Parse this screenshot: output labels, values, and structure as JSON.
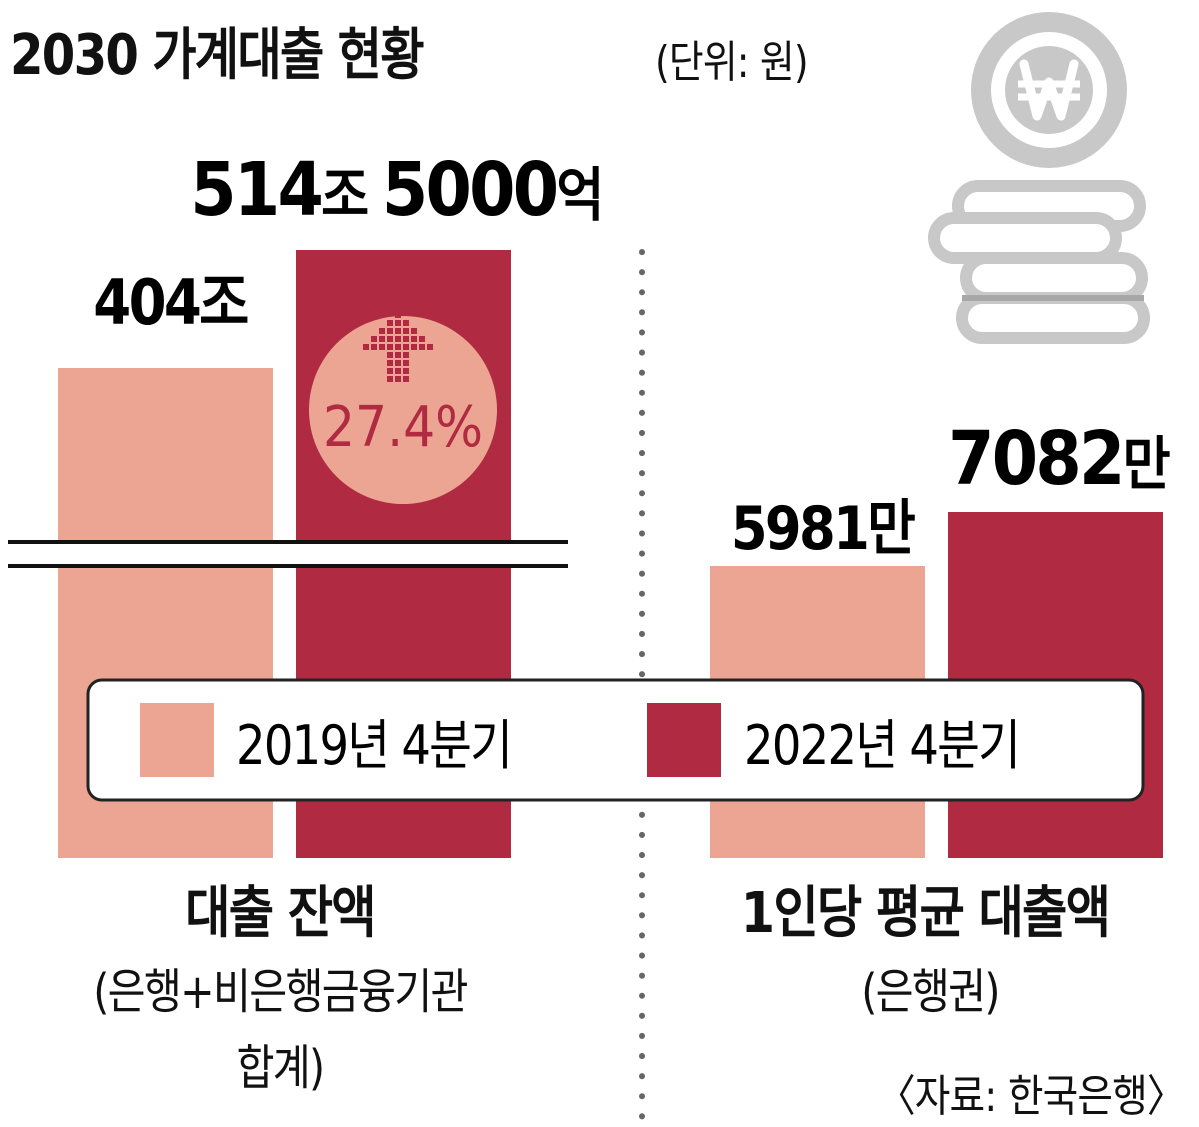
{
  "title": "2030 가계대출 현황",
  "unit": "(단위: 원)",
  "colors": {
    "series_2019": "#eba592",
    "series_2022": "#b02a41",
    "circle_fill": "#eba592",
    "circle_text": "#b02a41",
    "coin": "#c8c8c8"
  },
  "icon": "won-coin-stack-icon",
  "change_badge": "27.4%",
  "source": "〈자료: 한국은행〉",
  "chart_data": {
    "type": "bar",
    "axis_break": true,
    "legend": {
      "position": "center",
      "entries": [
        "2019년 4분기",
        "2022년 4분기"
      ]
    },
    "series": [
      {
        "name": "2019년 4분기"
      },
      {
        "name": "2022년 4분기"
      }
    ],
    "groups": [
      {
        "label": "대출 잔액",
        "sublabel_lines": [
          "(은행+비은행금융기관",
          "합계)"
        ],
        "values": [
          404,
          514.5
        ],
        "value_unit": "조 원",
        "value_labels": [
          {
            "num": "404",
            "unit": "조"
          },
          {
            "num": "514",
            "unit": "조 ",
            "num2": "5000",
            "unit2": "억"
          }
        ]
      },
      {
        "label": "1인당 평균 대출액",
        "sublabel_lines": [
          "(은행권)"
        ],
        "values": [
          5981,
          7082
        ],
        "value_unit": "만 원",
        "value_labels": [
          {
            "num": "5981",
            "unit": "만"
          },
          {
            "num": "7082",
            "unit": "만"
          }
        ]
      }
    ]
  }
}
